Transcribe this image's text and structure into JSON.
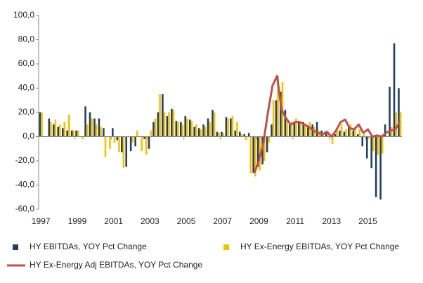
{
  "chart_data": {
    "type": "bar",
    "categories": [
      "1997",
      null,
      null,
      null,
      null,
      null,
      null,
      null,
      "1999",
      null,
      null,
      null,
      null,
      null,
      null,
      null,
      "2001",
      null,
      null,
      null,
      null,
      null,
      null,
      null,
      "2003",
      null,
      null,
      null,
      null,
      null,
      null,
      null,
      "2005",
      null,
      null,
      null,
      null,
      null,
      null,
      null,
      "2007",
      null,
      null,
      null,
      null,
      null,
      null,
      null,
      "2009",
      null,
      null,
      null,
      null,
      null,
      null,
      null,
      "2011",
      null,
      null,
      null,
      null,
      null,
      null,
      null,
      "2013",
      null,
      null,
      null,
      null,
      null,
      null,
      null,
      "2015",
      null,
      null,
      null,
      null,
      null,
      null,
      null
    ],
    "series": [
      {
        "name": "HY EBITDAs, YOY Pct Change",
        "color": "#243f60",
        "kind": "bar",
        "values": [
          20,
          0,
          15,
          10,
          8,
          7,
          5,
          5,
          5,
          0,
          25,
          20,
          15,
          15,
          7,
          0,
          7,
          -3,
          -13,
          -25,
          -12,
          -8,
          0,
          -2,
          -10,
          12,
          20,
          35,
          17,
          23,
          13,
          12,
          17,
          14,
          8,
          7,
          10,
          15,
          22,
          4,
          4,
          16,
          15,
          5,
          4,
          2,
          3,
          -30,
          -25,
          -23,
          -13,
          10,
          30,
          37,
          22,
          10,
          12,
          13,
          12,
          9,
          10,
          12,
          5,
          3,
          0,
          2,
          5,
          4,
          8,
          5,
          2,
          -8,
          -18,
          -26,
          -50,
          -52,
          10,
          41,
          77,
          40
        ]
      },
      {
        "name": "HY Ex-Energy EBITDAs, YOY Pct Change",
        "color": "#f2c100",
        "kind": "bar",
        "values": [
          20,
          0,
          12,
          14,
          10,
          12,
          18,
          5,
          5,
          -2,
          10,
          15,
          10,
          8,
          -17,
          -10,
          -5,
          -13,
          -26,
          0,
          -5,
          5,
          -12,
          -15,
          5,
          15,
          35,
          20,
          20,
          22,
          12,
          10,
          15,
          13,
          10,
          6,
          8,
          12,
          20,
          3,
          3,
          15,
          17,
          12,
          2,
          -3,
          -30,
          -33,
          -28,
          -20,
          -5,
          30,
          50,
          45,
          15,
          10,
          15,
          12,
          10,
          12,
          8,
          5,
          3,
          4,
          -6,
          5,
          10,
          6,
          10,
          8,
          6,
          2,
          -2,
          -12,
          -15,
          -14,
          0,
          8,
          20,
          20
        ]
      },
      {
        "name": "HY Ex-Energy Adj EBITDAs, YOY Pct Change",
        "color": "#c0504d",
        "kind": "line",
        "values": [
          null,
          null,
          null,
          null,
          null,
          null,
          null,
          null,
          null,
          null,
          null,
          null,
          null,
          null,
          null,
          null,
          null,
          null,
          null,
          null,
          null,
          null,
          null,
          null,
          null,
          null,
          null,
          null,
          null,
          null,
          null,
          null,
          null,
          null,
          null,
          null,
          null,
          null,
          null,
          null,
          null,
          null,
          null,
          null,
          null,
          null,
          null,
          -30,
          -20,
          -5,
          20,
          42,
          50,
          22,
          15,
          10,
          12,
          12,
          10,
          8,
          5,
          3,
          2,
          4,
          0,
          5,
          12,
          14,
          7,
          6,
          10,
          3,
          6,
          0,
          1,
          0,
          3,
          5,
          6,
          12
        ]
      }
    ],
    "ylim": [
      -60,
      100
    ],
    "yticks": [
      {
        "value": -60,
        "label": "-60,0"
      },
      {
        "value": -40,
        "label": "-40,0"
      },
      {
        "value": -20,
        "label": "-20,0"
      },
      {
        "value": 0,
        "label": "0,0"
      },
      {
        "value": 20,
        "label": "20,0"
      },
      {
        "value": 40,
        "label": "40,0"
      },
      {
        "value": 60,
        "label": "60,0"
      },
      {
        "value": 80,
        "label": "80,0"
      },
      {
        "value": 100,
        "label": "100,0"
      }
    ],
    "legend": "bottom"
  }
}
